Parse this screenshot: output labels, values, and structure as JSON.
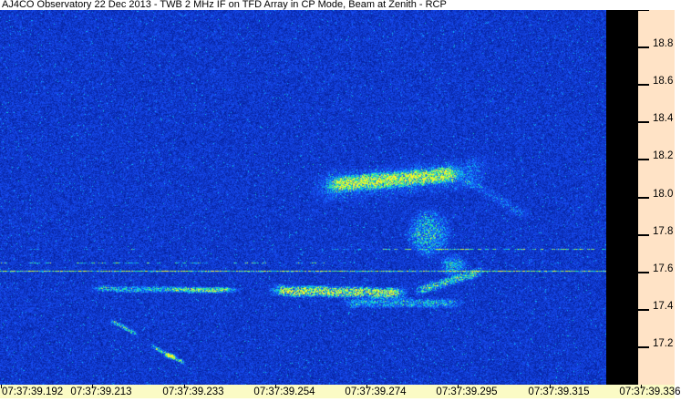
{
  "title": "AJ4CO Observatory 22 Dec 2013 - TWB 2 MHz IF on TFD Array in CP Mode, Beam at Zenith - RCP",
  "colors": {
    "titlebar_bg": "#FFFFFF",
    "text": "#000000",
    "right_axis_bg": "#FFE3C6",
    "bottom_axis_bg": "#FBFBC5",
    "right_gap_strip": "#000000",
    "noise_palette": [
      "#001080",
      "#16409B",
      "#2255F0",
      "#00AAFF",
      "#19DCC0",
      "#80F064",
      "#EEF334"
    ]
  },
  "chart_data": {
    "type": "heatmap",
    "subtype": "radio-spectrogram",
    "title": "AJ4CO Observatory 22 Dec 2013 - TWB 2 MHz IF on TFD Array in CP Mode, Beam at Zenith - RCP",
    "x_axis": {
      "tick_labels": [
        "07:37:39.192",
        "07:37:39.213",
        "07:37:39.233",
        "07:37:39.254",
        "07:37:39.274",
        "07:37:39.295",
        "07:37:39.315",
        "07:37:39.336"
      ],
      "tick_interval_ms": 20.5,
      "total_span_ms": 144,
      "grid": false
    },
    "y_axis": {
      "tick_labels": [
        "18.8",
        "18.6",
        "18.4",
        "18.2",
        "18.0",
        "17.8",
        "17.6",
        "17.4",
        "17.2"
      ],
      "tick_values": [
        18.8,
        18.6,
        18.4,
        18.2,
        18.0,
        17.8,
        17.6,
        17.4,
        17.2
      ],
      "edge_tick_value": 19.0,
      "range": [
        17.0,
        19.0
      ],
      "grid": false
    },
    "background": "dense blue speckle noise",
    "features": [
      {
        "name": "upper-burst-band",
        "type": "band",
        "t1": 73.4,
        "t2": 103.6,
        "f1": 18.066,
        "f2": 18.129,
        "hw": 0.05,
        "amp": 0.5
      },
      {
        "name": "upper-burst-halo",
        "type": "band",
        "t1": 70,
        "t2": 110,
        "f1": 18.05,
        "f2": 18.14,
        "hw": 0.1,
        "amp": 0.17
      },
      {
        "name": "upper-right-faint-tail",
        "type": "band",
        "t1": 103.6,
        "t2": 118.6,
        "f1": 18.11,
        "f2": 17.9,
        "hw": 0.04,
        "amp": 0.14
      },
      {
        "name": "descending-blob",
        "type": "blob",
        "t": 96.4,
        "f": 17.81,
        "rt": 5.7,
        "rf": 0.145,
        "amp": 0.34
      },
      {
        "name": "connector-blob",
        "type": "blob",
        "t": 102,
        "f": 17.64,
        "rt": 3.5,
        "rf": 0.065,
        "amp": 0.3
      },
      {
        "name": "rising-tail",
        "type": "band",
        "t1": 93.3,
        "t2": 108.7,
        "f1": 17.5,
        "f2": 17.61,
        "hw": 0.03,
        "amp": 0.4
      },
      {
        "name": "mid-band-bright",
        "type": "band",
        "t1": 60.7,
        "t2": 91.5,
        "f1": 17.505,
        "f2": 17.49,
        "hw": 0.035,
        "amp": 0.6
      },
      {
        "name": "mid-band-lower",
        "type": "band",
        "t1": 76.7,
        "t2": 103.8,
        "f1": 17.438,
        "f2": 17.438,
        "hw": 0.03,
        "amp": 0.3
      },
      {
        "name": "left-streak",
        "type": "band",
        "t1": 19.9,
        "t2": 53.9,
        "f1": 17.515,
        "f2": 17.505,
        "hw": 0.02,
        "amp": 0.33
      },
      {
        "name": "left-streak-bright",
        "type": "blob",
        "t": 45.5,
        "f": 17.51,
        "rt": 9,
        "rf": 0.018,
        "amp": 0.26
      },
      {
        "name": "diagonal-streak-1",
        "type": "band",
        "t1": 24.8,
        "t2": 31.0,
        "f1": 17.345,
        "f2": 17.268,
        "hw": 0.015,
        "amp": 0.4
      },
      {
        "name": "diagonal-streak-2",
        "type": "band",
        "t1": 33.8,
        "t2": 41.6,
        "f1": 17.21,
        "f2": 17.117,
        "hw": 0.015,
        "amp": 0.45
      },
      {
        "name": "diagonal-hotspot",
        "type": "blob",
        "t": 38.2,
        "f": 17.155,
        "rt": 1.5,
        "rf": 0.02,
        "amp": 0.5
      },
      {
        "name": "dash-line-upper-right",
        "type": "dashes",
        "t1": 86,
        "t2": 136.4,
        "f": 17.727,
        "amp": 0.45,
        "density": 0.5
      },
      {
        "name": "dash-line-upper-left",
        "type": "dashes",
        "t1": 0,
        "t2": 86,
        "f": 17.727,
        "amp": 0.2,
        "density": 0.28
      },
      {
        "name": "dash-line-lower-left",
        "type": "dashes",
        "t1": 0,
        "t2": 74,
        "f": 17.652,
        "amp": 0.38,
        "density": 0.45
      },
      {
        "name": "dash-line-lower-right",
        "type": "dashes",
        "t1": 74,
        "t2": 136.4,
        "f": 17.652,
        "amp": 0.13,
        "density": 0.22
      },
      {
        "name": "solid-interference-line",
        "type": "hline",
        "t1": 0,
        "t2": 136.4,
        "f": 17.606,
        "amp": 0.5
      }
    ]
  }
}
